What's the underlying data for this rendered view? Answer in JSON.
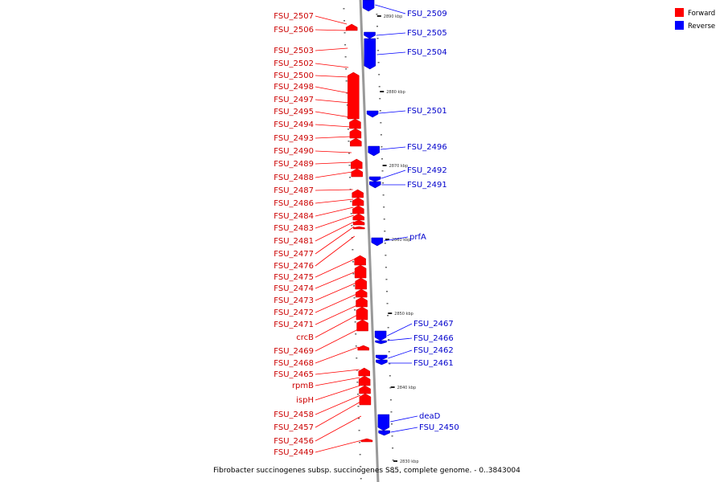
{
  "caption": "Fibrobacter succinogenes subsp. succinogenes S85, complete genome. - 0..3843004",
  "legend": [
    {
      "label": "Forward",
      "color": "#ff0000"
    },
    {
      "label": "Reverse",
      "color": "#0000ff"
    }
  ],
  "colors": {
    "forward": "#ff0000",
    "forward_dark": "#cc0000",
    "reverse": "#0000ff",
    "reverse_dark": "#0000aa",
    "axis": "#999999"
  },
  "ticks": [
    "2890 kbp",
    "2880 kbp",
    "2870 kbp",
    "2860 kbp",
    "2850 kbp",
    "2840 kbp",
    "2830 kbp"
  ],
  "forward_labels": [
    "FSU_2507",
    "FSU_2506",
    "FSU_2503",
    "FSU_2502",
    "FSU_2500",
    "FSU_2498",
    "FSU_2497",
    "FSU_2495",
    "FSU_2494",
    "FSU_2493",
    "FSU_2490",
    "FSU_2489",
    "FSU_2488",
    "FSU_2487",
    "FSU_2486",
    "FSU_2484",
    "FSU_2483",
    "FSU_2481",
    "FSU_2477",
    "FSU_2476",
    "FSU_2475",
    "FSU_2474",
    "FSU_2473",
    "FSU_2472",
    "FSU_2471",
    "crcB",
    "FSU_2469",
    "FSU_2468",
    "FSU_2465",
    "rpmB",
    "ispH",
    "FSU_2458",
    "FSU_2457",
    "FSU_2456",
    "FSU_2449"
  ],
  "reverse_labels": [
    "FSU_2509",
    "FSU_2505",
    "FSU_2504",
    "FSU_2501",
    "FSU_2496",
    "FSU_2492",
    "FSU_2491",
    "prfA",
    "FSU_2467",
    "FSU_2466",
    "FSU_2462",
    "FSU_2461",
    "deaD",
    "FSU_2450"
  ]
}
